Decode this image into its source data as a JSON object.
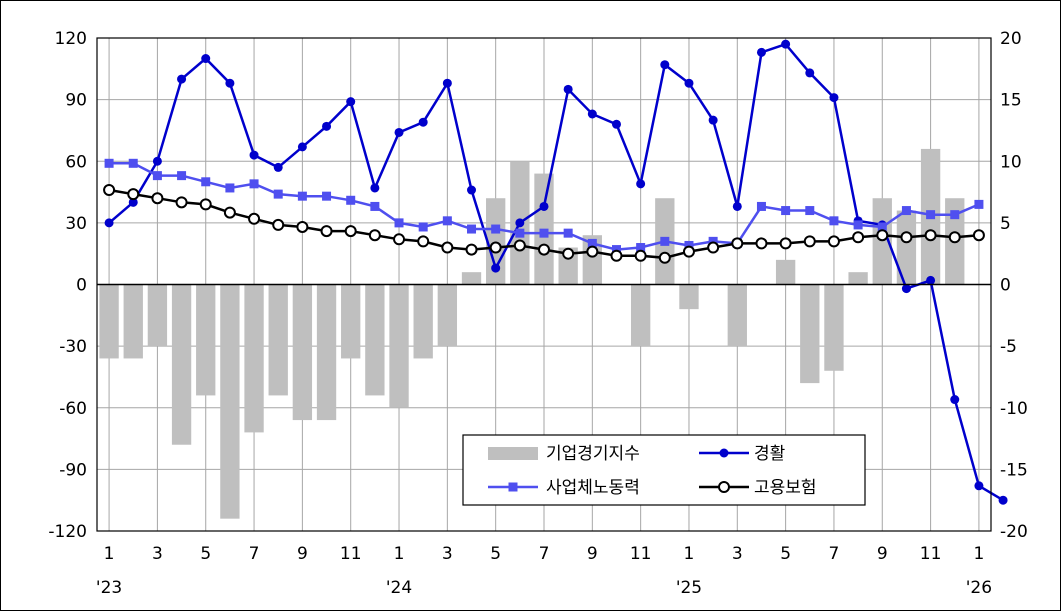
{
  "chart_data": {
    "type": "bar+line",
    "x_tick_labels": [
      "1",
      "3",
      "5",
      "7",
      "9",
      "11",
      "1",
      "3",
      "5",
      "7",
      "9",
      "11",
      "1",
      "3",
      "5",
      "7",
      "9",
      "11",
      "1"
    ],
    "x_year_labels": [
      "'23",
      "'24",
      "'25",
      "'26"
    ],
    "y_left": {
      "lim": [
        -120,
        120
      ],
      "ticks": [
        "120",
        "90",
        "60",
        "30",
        "0",
        "-30",
        "-60",
        "-90",
        "-120"
      ]
    },
    "y_right": {
      "lim": [
        -20,
        20
      ],
      "ticks": [
        "20",
        "15",
        "10",
        "5",
        "0",
        "-5",
        "-10",
        "-15",
        "-20"
      ]
    },
    "grid": true,
    "legend_position": "bottom-right",
    "colors": {
      "bar": "#bfbfbf",
      "gyeonghwal": "#0000cc",
      "labor": "#4f4fef",
      "insurance": "#000000"
    },
    "legend": {
      "bar": "기업경기지수",
      "gyeonghwal": "경활",
      "labor": "사업체노동력",
      "insurance": "고용보험"
    },
    "bar_series": {
      "name": "기업경기지수",
      "axis": "right",
      "values": [
        -6,
        -6,
        -5,
        -13,
        -9,
        -19,
        -12,
        -9,
        -11,
        -11,
        -6,
        -9,
        -10,
        -6,
        -5,
        1,
        7,
        10,
        9,
        3,
        4,
        0,
        -5,
        7,
        -2,
        0,
        -5,
        0,
        2,
        -8,
        -7,
        1,
        7,
        6,
        11,
        7
      ]
    },
    "line_series": [
      {
        "name": "경활",
        "axis": "left",
        "values": [
          30,
          40,
          60,
          100,
          110,
          98,
          63,
          57,
          67,
          77,
          89,
          47,
          74,
          79,
          98,
          46,
          8,
          30,
          38,
          95,
          83,
          78,
          49,
          107,
          98,
          80,
          38,
          113,
          117,
          103,
          91,
          31,
          29,
          -2,
          2,
          -56,
          -98,
          -105
        ]
      },
      {
        "name": "사업체노동력",
        "axis": "left",
        "values": [
          59,
          59,
          53,
          53,
          50,
          47,
          49,
          44,
          43,
          43,
          41,
          38,
          30,
          28,
          31,
          27,
          27,
          25,
          25,
          25,
          20,
          17,
          18,
          21,
          19,
          21,
          20,
          38,
          36,
          36,
          31,
          29,
          28,
          36,
          34,
          34,
          39
        ]
      },
      {
        "name": "고용보험",
        "axis": "left",
        "values": [
          46,
          44,
          42,
          40,
          39,
          35,
          32,
          29,
          28,
          26,
          26,
          24,
          22,
          21,
          18,
          17,
          18,
          19,
          17,
          15,
          16,
          14,
          14,
          13,
          16,
          18,
          20,
          20,
          20,
          21,
          21,
          23,
          24,
          23,
          24,
          23,
          24
        ]
      }
    ]
  }
}
